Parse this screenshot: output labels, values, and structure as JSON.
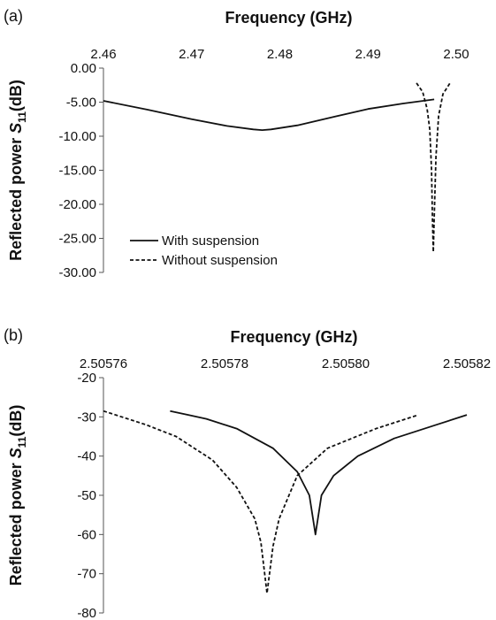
{
  "chart_data": [
    {
      "type": "line",
      "panel_label": "(a)",
      "xlabel": "Frequency (GHz)",
      "ylabel_main": "Reflected power ",
      "ylabel_italic": "S",
      "ylabel_sub": "11",
      "ylabel_unit": "(dB)",
      "x_axis_position": "top",
      "xlim": [
        2.46,
        2.5
      ],
      "ylim": [
        -30,
        0
      ],
      "x_ticks": [
        2.46,
        2.47,
        2.48,
        2.49,
        2.5
      ],
      "x_tick_labels": [
        "2.46",
        "2.47",
        "2.48",
        "2.49",
        "2.50"
      ],
      "y_ticks": [
        0,
        -5,
        -10,
        -15,
        -20,
        -25,
        -30
      ],
      "y_tick_labels": [
        "0.00",
        "-5.00",
        "-10.00",
        "-15.00",
        "-20.00",
        "-25.00",
        "-30.00"
      ],
      "legend_position": "bottom-left",
      "series": [
        {
          "name": "With suspension",
          "style": "solid",
          "color": "#111111",
          "x": [
            2.46,
            2.465,
            2.47,
            2.474,
            2.477,
            2.478,
            2.479,
            2.482,
            2.486,
            2.49,
            2.494,
            2.4975
          ],
          "y": [
            -4.8,
            -6.1,
            -7.5,
            -8.5,
            -9.0,
            -9.1,
            -9.0,
            -8.4,
            -7.2,
            -6.0,
            -5.2,
            -4.6
          ]
        },
        {
          "name": "Without suspension",
          "style": "dashed",
          "color": "#111111",
          "x": [
            2.4955,
            2.4962,
            2.4967,
            2.497,
            2.4972,
            2.4973,
            2.4974,
            2.4975,
            2.4977,
            2.498,
            2.4985,
            2.4993
          ],
          "y": [
            -2.2,
            -3.5,
            -6.0,
            -9.0,
            -15.0,
            -22.0,
            -27.0,
            -22.0,
            -13.0,
            -7.0,
            -3.8,
            -2.2
          ]
        }
      ]
    },
    {
      "type": "line",
      "panel_label": "(b)",
      "xlabel": "Frequency (GHz)",
      "ylabel_main": "Reflected power ",
      "ylabel_italic": "S",
      "ylabel_sub": "11",
      "ylabel_unit": "(dB)",
      "x_axis_position": "top",
      "xlim": [
        2.50576,
        2.50582
      ],
      "ylim": [
        -80,
        -20
      ],
      "x_ticks": [
        2.50576,
        2.50578,
        2.5058,
        2.50582
      ],
      "x_tick_labels": [
        "2.50576",
        "2.50578",
        "2.50580",
        "2.50582"
      ],
      "y_ticks": [
        -20,
        -30,
        -40,
        -50,
        -60,
        -70,
        -80
      ],
      "y_tick_labels": [
        "-20",
        "-30",
        "-40",
        "-50",
        "-60",
        "-70",
        "-80"
      ],
      "series": [
        {
          "name": "With suspension",
          "style": "solid",
          "color": "#111111",
          "x": [
            2.505771,
            2.505774,
            2.505777,
            2.505782,
            2.505788,
            2.505792,
            2.505794,
            2.505795,
            2.505796,
            2.505798,
            2.505802,
            2.505808,
            2.505815,
            2.50582
          ],
          "y": [
            -28.5,
            -29.5,
            -30.5,
            -33,
            -38,
            -44,
            -50,
            -60,
            -50,
            -45,
            -40,
            -35.5,
            -32,
            -29.5
          ]
        },
        {
          "name": "Without suspension",
          "style": "dashed",
          "color": "#111111",
          "x": [
            2.50576,
            2.505763,
            2.505767,
            2.505772,
            2.505778,
            2.505782,
            2.505785,
            2.505786,
            2.505787,
            2.505788,
            2.505789,
            2.505792,
            2.505797,
            2.505805,
            2.505812
          ],
          "y": [
            -28.5,
            -30,
            -32,
            -35,
            -41,
            -48,
            -56,
            -62,
            -75,
            -63,
            -56,
            -45,
            -38,
            -33,
            -29.5
          ]
        }
      ]
    }
  ]
}
